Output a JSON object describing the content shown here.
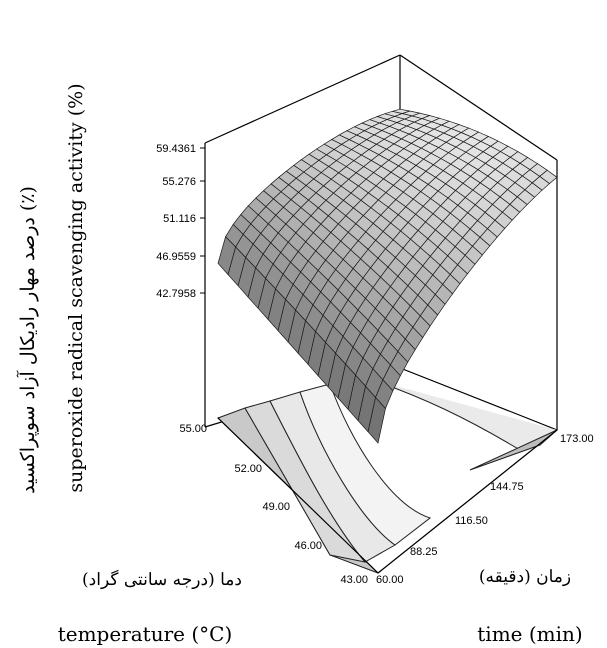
{
  "chart_data": {
    "type": "surface3d",
    "zlabel_fa": "درصد مهار رادیکال آزاد سوپراکسید (٪)",
    "zlabel_en": "superoxide radical scavenging activity (%)",
    "xlabel_fa": "دما (درجه سانتی گراد)",
    "xlabel_en": "temperature (°C)",
    "ylabel_fa": "زمان (دقیقه)",
    "ylabel_en": "time (min)",
    "z_ticks": [
      "59.4361",
      "55.276",
      "51.116",
      "46.9559",
      "42.7958"
    ],
    "x_ticks": [
      "43.00",
      "46.00",
      "49.00",
      "52.00",
      "55.00"
    ],
    "y_ticks": [
      "60.00",
      "88.25",
      "116.50",
      "144.75",
      "173.00"
    ],
    "zlim": [
      42.7958,
      59.4361
    ],
    "xlim": [
      43,
      55
    ],
    "ylim": [
      60,
      173
    ],
    "surface": {
      "temperature": [
        43,
        55
      ],
      "time": [
        60,
        173
      ],
      "z_at_t43_time60": 42.8,
      "z_at_t55_time60": 45.5,
      "z_max": 59.4,
      "z_at_time173_mid_temp": 56.0
    }
  }
}
